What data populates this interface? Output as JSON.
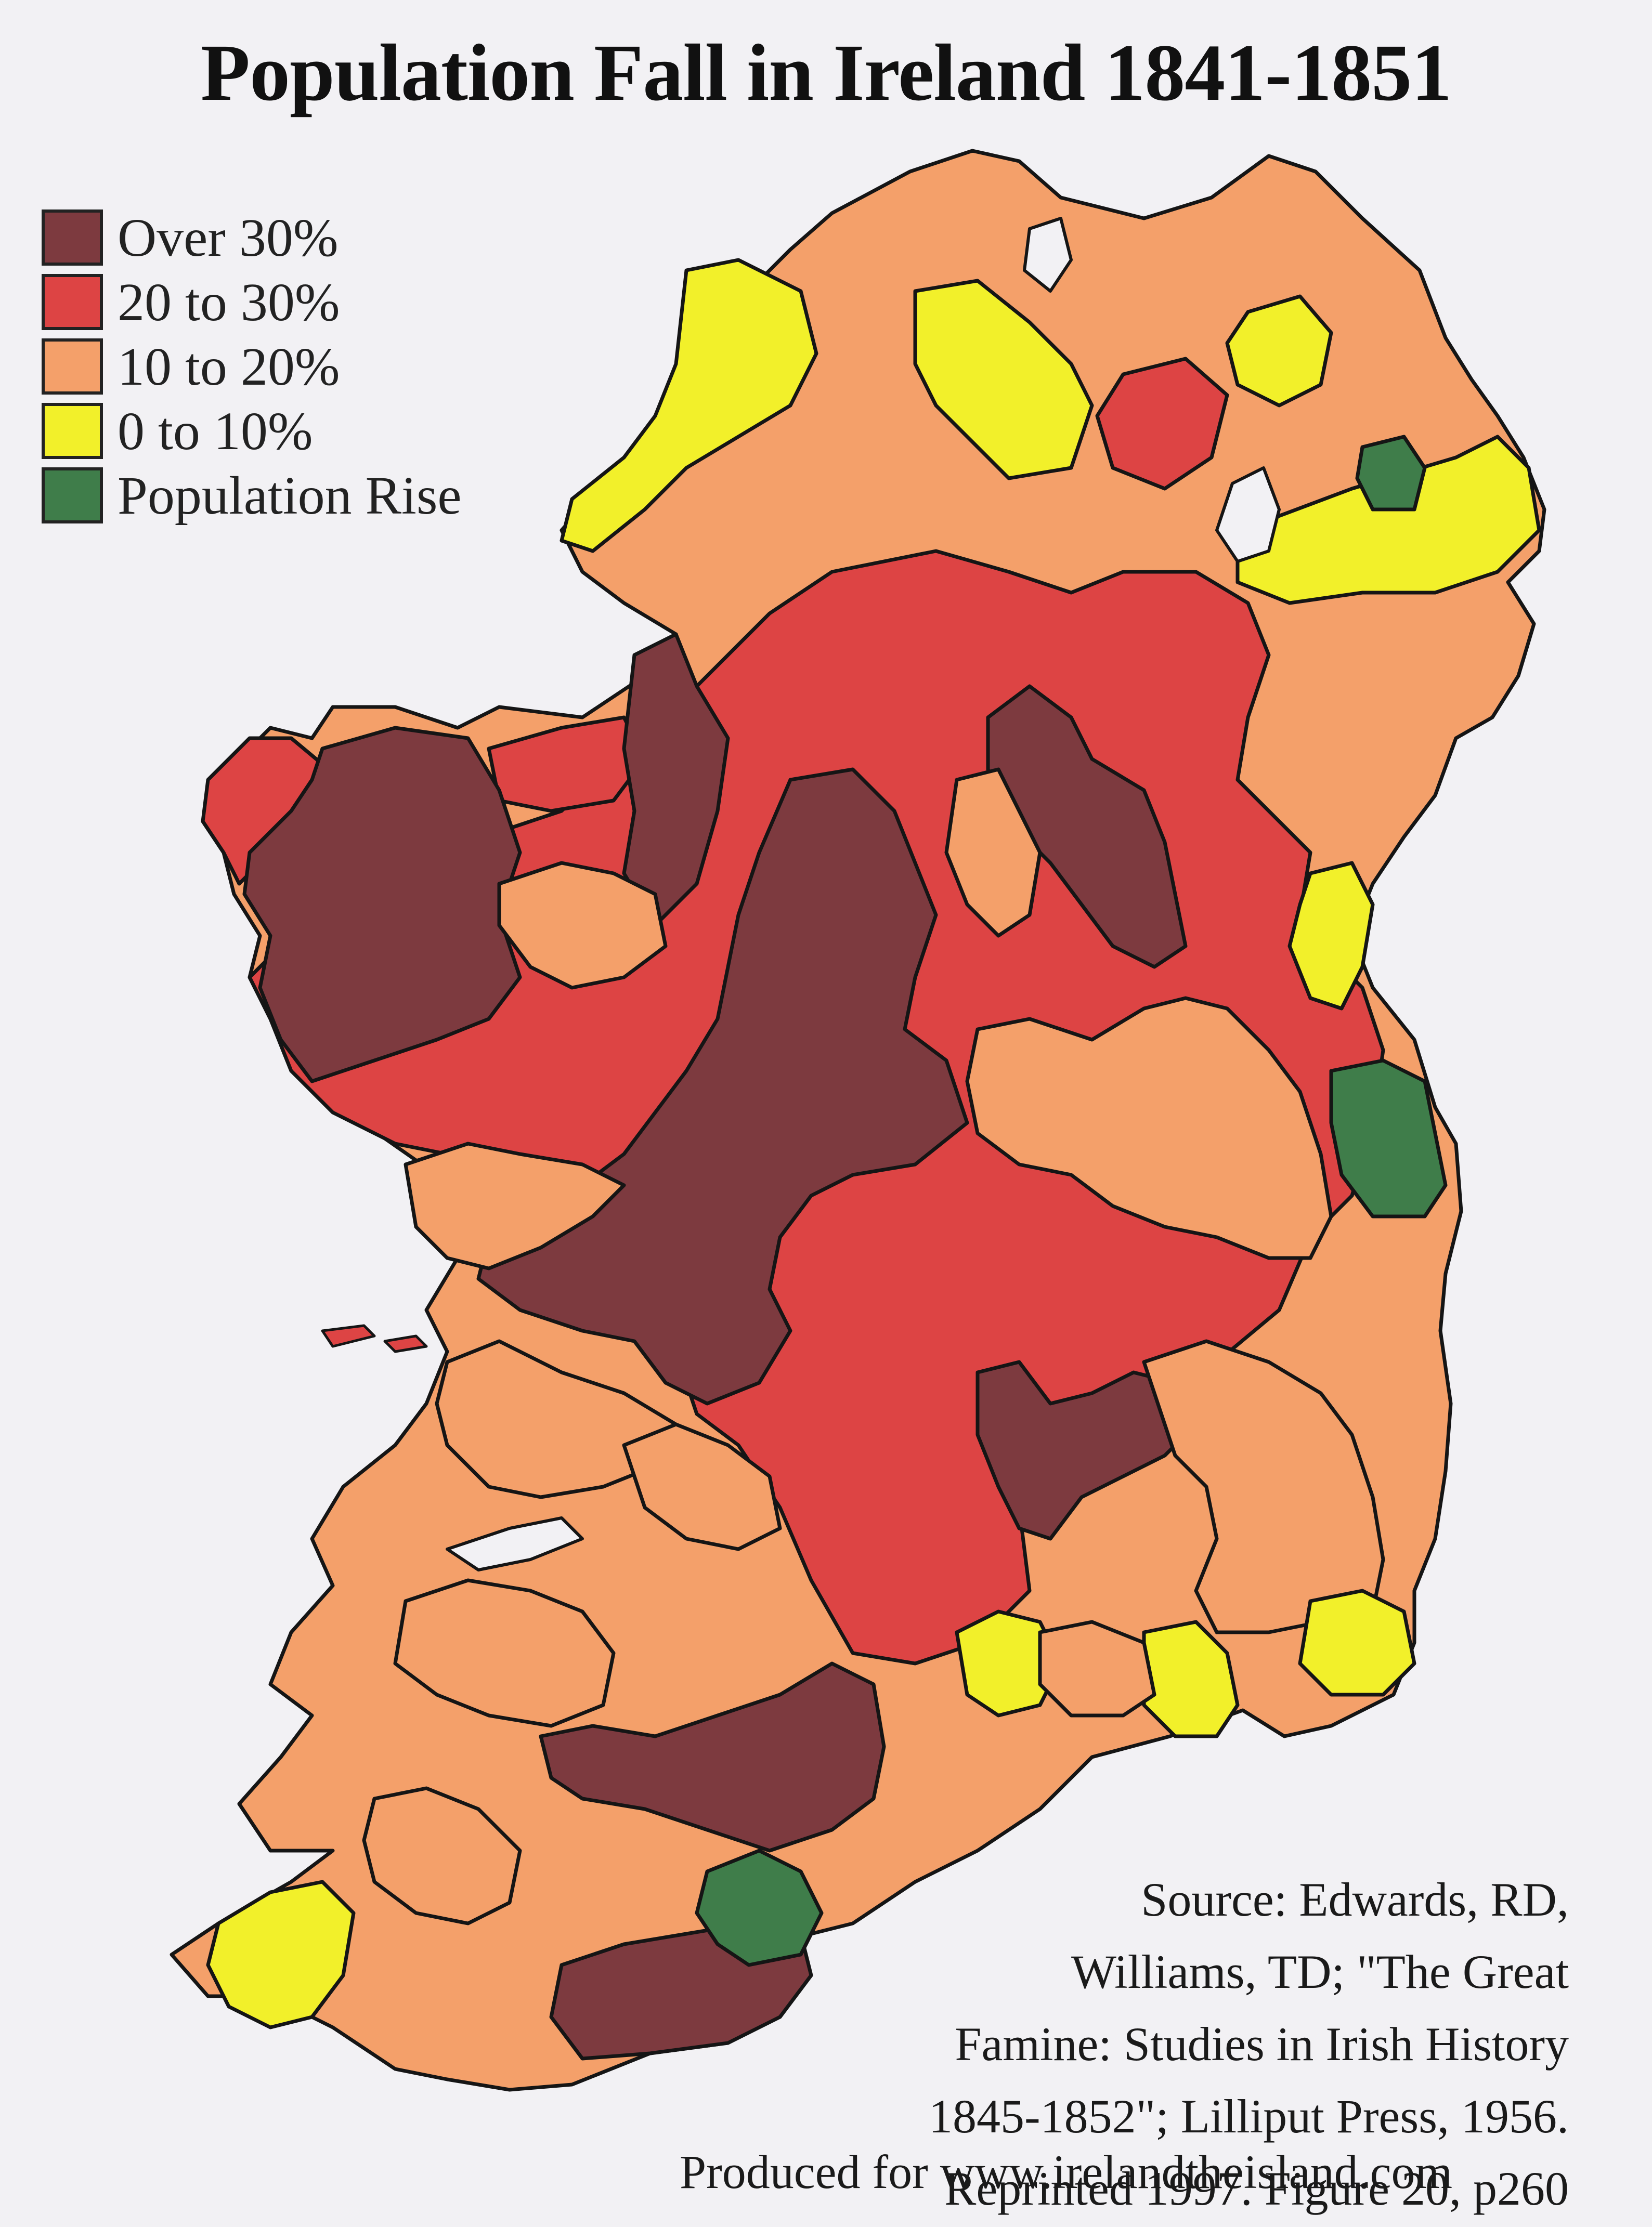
{
  "title": "Population Fall in Ireland 1841-1851",
  "legend": [
    {
      "label": "Over 30%",
      "color": "#7d3a3f"
    },
    {
      "label": "20 to 30%",
      "color": "#dd4444"
    },
    {
      "label": "10 to 20%",
      "color": "#f4a06a"
    },
    {
      "label": "0 to 10%",
      "color": "#f2f02a"
    },
    {
      "label": "Population Rise",
      "color": "#3f7d4a"
    }
  ],
  "map_colors": {
    "over30": "#7d3a3f",
    "r20to30": "#dd4444",
    "r10to20": "#f4a06a",
    "r0to10": "#f2f02a",
    "rise": "#3f7d4a",
    "border": "#151515",
    "lake": "#f2f1f4"
  },
  "source_lines": [
    "Source: Edwards, RD,",
    "Williams, TD; \"The Great",
    "Famine: Studies in Irish History",
    "1845-1852\"; Lilliput Press, 1956.",
    "Reprinted 1997. Figure 20, p260"
  ],
  "credit": "Produced for www.irelandtheisland.com"
}
